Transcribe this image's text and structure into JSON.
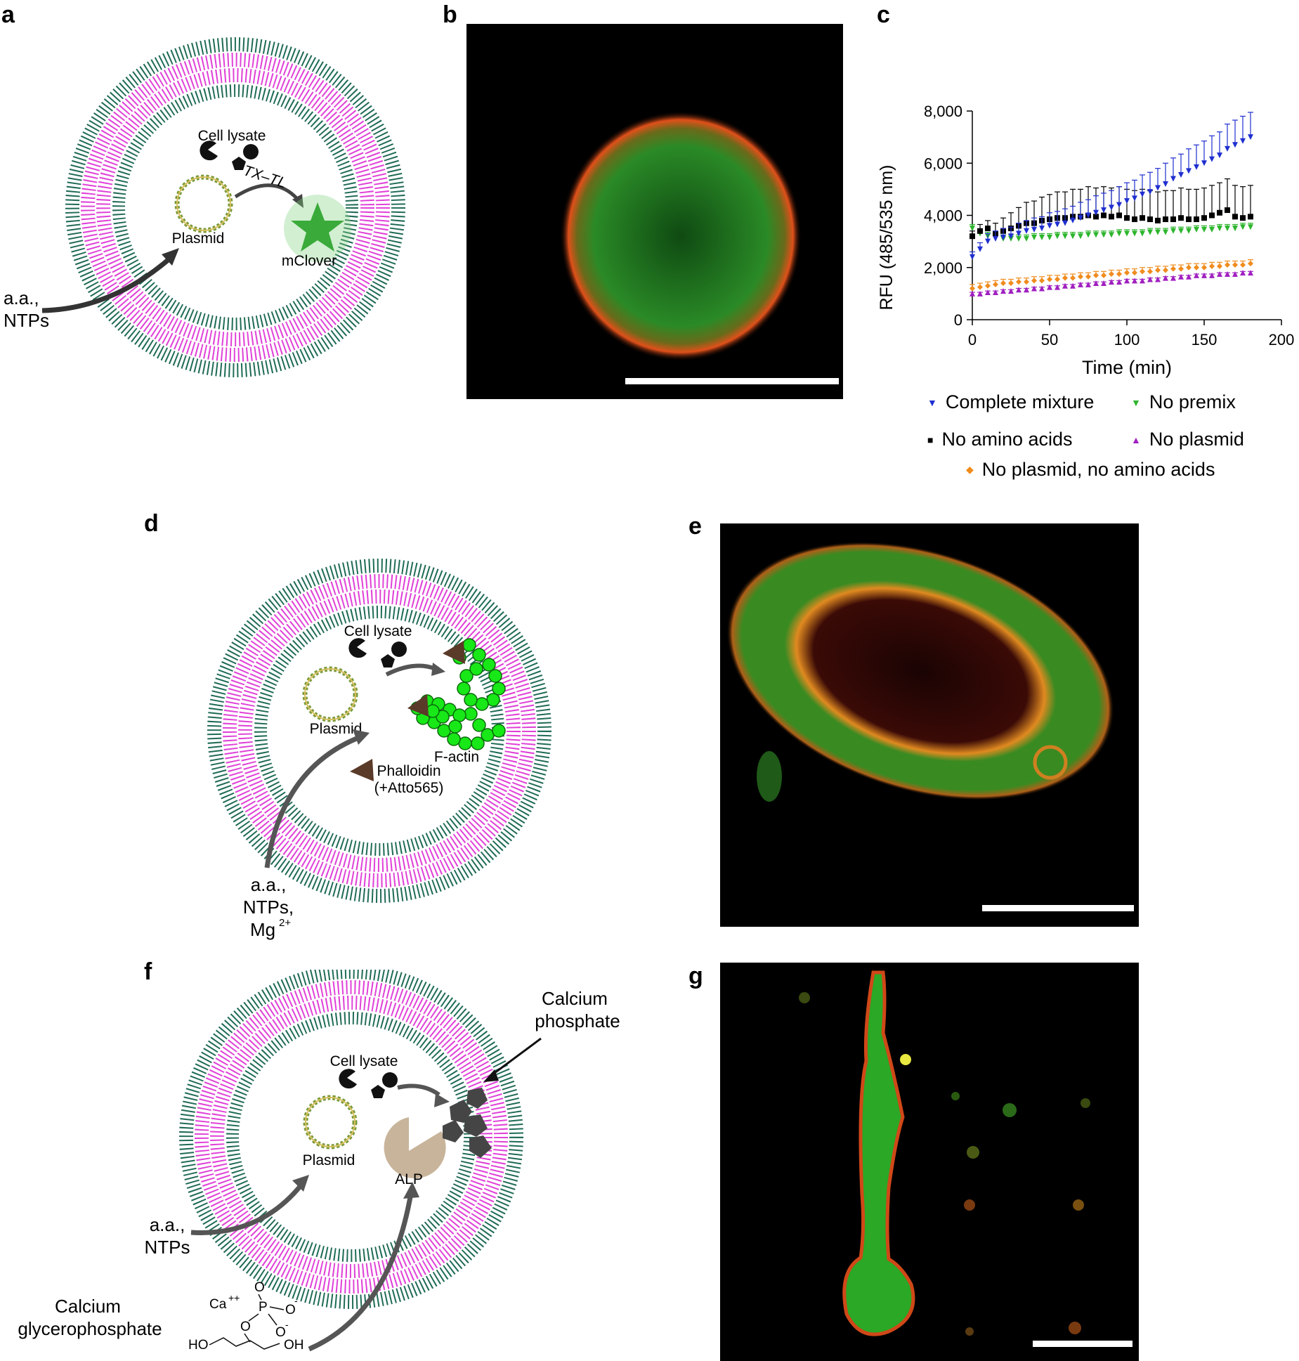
{
  "panels": {
    "a": {
      "label": "a",
      "cell_lysate": "Cell lysate",
      "plasmid": "Plasmid",
      "txtl": "TX–TL",
      "product": "mClover",
      "inputs": [
        "a.a.,",
        "NTPs"
      ]
    },
    "b": {
      "label": "b"
    },
    "c": {
      "label": "c"
    },
    "d": {
      "label": "d",
      "cell_lysate": "Cell lysate",
      "plasmid": "Plasmid",
      "factin": "F-actin",
      "phalloidin_line1": "Phalloidin",
      "phalloidin_line2": "(+Atto565)",
      "inputs": [
        "a.a.,",
        "NTPs,",
        "Mg"
      ],
      "mg_charge": "2+"
    },
    "e": {
      "label": "e"
    },
    "f": {
      "label": "f",
      "cell_lysate": "Cell lysate",
      "plasmid": "Plasmid",
      "alp": "ALP",
      "calcium_phosphate": [
        "Calcium",
        "phosphate"
      ],
      "inputs": [
        "a.a.,",
        "NTPs"
      ],
      "calcium_glycerophosphate": [
        "Calcium",
        "glycerophosphate"
      ],
      "chem": {
        "ca": "Ca",
        "ca_charge": "++",
        "p": "P",
        "o": "O",
        "neg": "-",
        "ho": "HO",
        "oh": "OH"
      }
    },
    "g": {
      "label": "g"
    }
  },
  "colors": {
    "outer_lipid": "#1f6b55",
    "mid_lipid": "#e040d8",
    "green_fp": "#22b822",
    "factin": "#18e818",
    "phalloidin": "#5a3a28",
    "alp": "#c8b49a",
    "calcium_phosphate": "#454545",
    "complete": "#1f2fd0",
    "no_premix": "#2db52d",
    "no_aa": "#000000",
    "no_plasmid": "#a020c0",
    "no_plasmid_no_aa": "#f08c1e"
  },
  "chart_data": {
    "type": "scatter",
    "xlabel": "Time (min)",
    "ylabel": "RFU (485/535 nm)",
    "xlim": [
      0,
      200
    ],
    "ylim": [
      0,
      8000
    ],
    "xticks": [
      "0",
      "50",
      "100",
      "150",
      "200"
    ],
    "yticks": [
      "0",
      "2,000",
      "4,000",
      "6,000",
      "8,000"
    ],
    "grid": false,
    "legend_position": "bottom",
    "x": [
      0,
      5,
      10,
      15,
      20,
      25,
      30,
      35,
      40,
      45,
      50,
      55,
      60,
      65,
      70,
      75,
      80,
      85,
      90,
      95,
      100,
      105,
      110,
      115,
      120,
      125,
      130,
      135,
      140,
      145,
      150,
      155,
      160,
      165,
      170,
      175,
      180
    ],
    "series": [
      {
        "name": "Complete mixture",
        "marker": "triangle-down",
        "color": "#1f2fd0",
        "values": [
          2400,
          2700,
          3000,
          3100,
          3150,
          3200,
          3300,
          3400,
          3450,
          3500,
          3600,
          3650,
          3700,
          3800,
          3900,
          4000,
          4100,
          4200,
          4300,
          4400,
          4550,
          4650,
          4800,
          4900,
          5050,
          5200,
          5400,
          5550,
          5700,
          5850,
          6000,
          6150,
          6300,
          6550,
          6700,
          6850,
          7000
        ],
        "error": [
          200,
          250,
          300,
          300,
          350,
          350,
          400,
          400,
          450,
          450,
          500,
          500,
          550,
          550,
          600,
          600,
          650,
          650,
          650,
          700,
          700,
          700,
          750,
          750,
          750,
          800,
          800,
          800,
          850,
          850,
          850,
          900,
          900,
          950,
          950,
          950,
          950
        ]
      },
      {
        "name": "No premix",
        "marker": "triangle-down",
        "color": "#2db52d",
        "values": [
          3500,
          3300,
          3200,
          3150,
          3100,
          3100,
          3100,
          3100,
          3150,
          3150,
          3150,
          3200,
          3200,
          3200,
          3200,
          3250,
          3250,
          3250,
          3250,
          3300,
          3300,
          3300,
          3300,
          3350,
          3350,
          3350,
          3400,
          3400,
          3400,
          3450,
          3450,
          3450,
          3500,
          3500,
          3500,
          3550,
          3550
        ],
        "error": [
          150,
          150,
          150,
          150,
          150,
          150,
          150,
          150,
          150,
          150,
          150,
          150,
          150,
          150,
          150,
          150,
          150,
          150,
          150,
          150,
          150,
          150,
          150,
          150,
          150,
          150,
          150,
          150,
          150,
          150,
          150,
          150,
          150,
          150,
          150,
          150,
          150
        ]
      },
      {
        "name": "No amino acids",
        "marker": "square",
        "color": "#000000",
        "values": [
          3200,
          3400,
          3500,
          3300,
          3400,
          3500,
          3600,
          3700,
          3700,
          3800,
          3850,
          3900,
          3900,
          3950,
          3950,
          4000,
          3950,
          4000,
          3950,
          4000,
          3900,
          3850,
          3900,
          3850,
          3800,
          3850,
          3850,
          3900,
          3850,
          3850,
          3900,
          4000,
          4100,
          4200,
          3950,
          3900,
          3950
        ],
        "error": [
          200,
          250,
          300,
          400,
          500,
          600,
          700,
          800,
          850,
          900,
          950,
          1000,
          1000,
          1050,
          1050,
          1100,
          1100,
          1100,
          1100,
          1100,
          1100,
          1100,
          1100,
          1100,
          1100,
          1100,
          1100,
          1150,
          1150,
          1150,
          1150,
          1150,
          1150,
          1200,
          1200,
          1200,
          1200
        ]
      },
      {
        "name": "No plasmid",
        "marker": "triangle-up",
        "color": "#a020c0",
        "values": [
          1000,
          1000,
          1050,
          1050,
          1100,
          1100,
          1150,
          1150,
          1200,
          1200,
          1250,
          1250,
          1300,
          1300,
          1350,
          1350,
          1400,
          1400,
          1450,
          1450,
          1500,
          1500,
          1500,
          1550,
          1550,
          1600,
          1600,
          1650,
          1650,
          1700,
          1700,
          1700,
          1750,
          1750,
          1750,
          1800,
          1800
        ],
        "error": [
          50,
          50,
          50,
          50,
          50,
          50,
          50,
          50,
          50,
          50,
          50,
          50,
          50,
          50,
          50,
          50,
          50,
          50,
          50,
          50,
          50,
          50,
          50,
          50,
          50,
          50,
          50,
          50,
          50,
          50,
          50,
          50,
          50,
          50,
          50,
          50,
          50
        ]
      },
      {
        "name": "No plasmid, no amino acids",
        "marker": "diamond",
        "color": "#f08c1e",
        "values": [
          1200,
          1250,
          1300,
          1350,
          1400,
          1400,
          1450,
          1450,
          1500,
          1500,
          1550,
          1550,
          1600,
          1600,
          1650,
          1650,
          1700,
          1700,
          1750,
          1750,
          1800,
          1800,
          1850,
          1850,
          1900,
          1900,
          1950,
          1950,
          2000,
          2000,
          2000,
          2050,
          2050,
          2100,
          2100,
          2100,
          2150
        ],
        "error": [
          150,
          150,
          150,
          150,
          150,
          150,
          150,
          150,
          150,
          150,
          150,
          150,
          150,
          150,
          150,
          150,
          150,
          150,
          150,
          150,
          150,
          150,
          150,
          150,
          150,
          150,
          150,
          150,
          150,
          150,
          150,
          150,
          150,
          150,
          150,
          150,
          150
        ]
      }
    ]
  }
}
